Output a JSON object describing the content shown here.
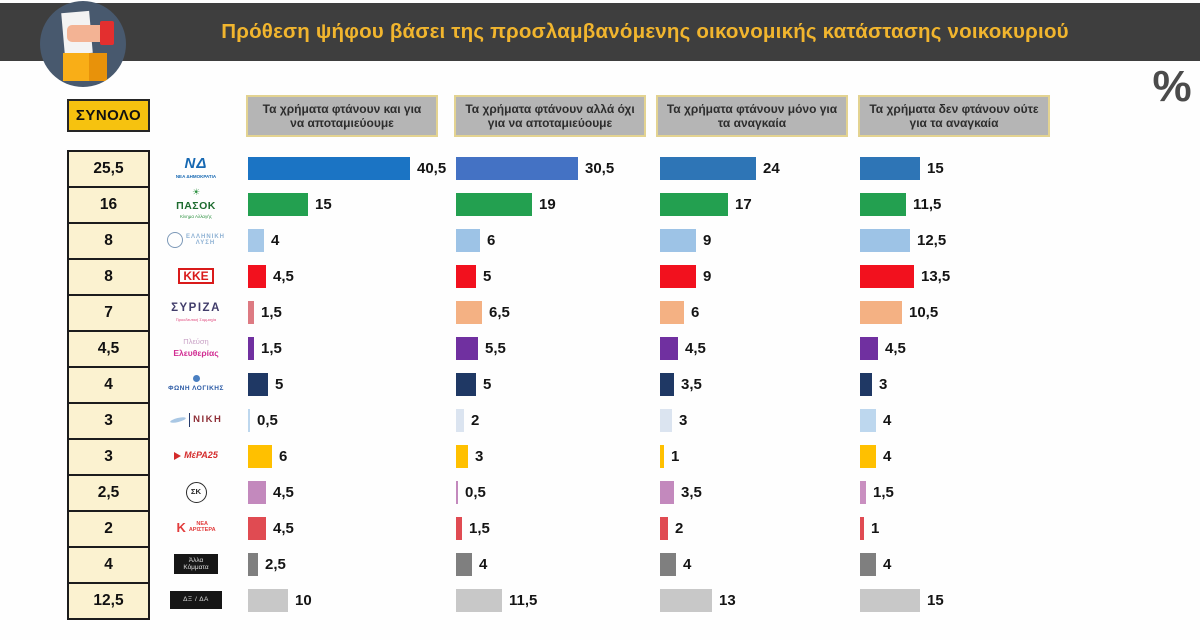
{
  "header": {
    "title": "Πρόθεση ψήφου βάσει της προσλαμβανόμενης οικονομικής κατάστασης νοικοκυριού",
    "title_color": "#f1b52e",
    "bar_color": "#3e3e3e",
    "unit": "%"
  },
  "total_header": "ΣΥΝΟΛΟ",
  "columns": [
    {
      "label": "Τα χρήματα φτάνουν και για να αποταμιεύουμε"
    },
    {
      "label": "Τα χρήματα φτάνουν αλλά όχι για να αποταμιεύουμε"
    },
    {
      "label": "Τα χρήματα φτάνουν μόνο για τα αναγκαία"
    },
    {
      "label": "Τα χρήματα δεν φτάνουν ούτε για τα αναγκαία"
    }
  ],
  "chart_data": {
    "type": "bar",
    "orientation": "horizontal",
    "unit": "%",
    "title": "Πρόθεση ψήφου βάσει της προσλαμβανόμενης οικονομικής κατάστασης νοικοκυριού",
    "categories": [
      "Τα χρήματα φτάνουν και για να αποταμιεύουμε",
      "Τα χρήματα φτάνουν αλλά όχι για να αποταμιεύουμε",
      "Τα χρήματα φτάνουν μόνο για τα αναγκαία",
      "Τα χρήματα δεν φτάνουν ούτε για τα αναγκαία"
    ],
    "series": [
      {
        "id": "nd",
        "name": "ΝΔ - ΝΕΑ ΔΗΜΟΚΡΑΤΙΑ",
        "total": "25,5",
        "values": [
          40.5,
          30.5,
          24,
          15
        ],
        "labels": [
          "40,5",
          "30,5",
          "24",
          "15"
        ],
        "colors": [
          "#1b74c4",
          "#4472c4",
          "#2e75b6",
          "#2e75b6"
        ],
        "logo": {
          "dir": "col",
          "parts": [
            {
              "text": "ΝΔ",
              "size": 15,
              "color": "#1668b2",
              "bold": true,
              "italic": true,
              "ls": 1
            },
            {
              "text": "ΝΕΑ ΔΗΜΟΚΡΑΤΙΑ",
              "size": 4.5,
              "color": "#1668b2",
              "bold": true
            }
          ]
        }
      },
      {
        "id": "pasok",
        "name": "ΠΑΣΟΚ Κίνημα Αλλαγής",
        "total": "16",
        "values": [
          15,
          19,
          17,
          11.5
        ],
        "labels": [
          "15",
          "19",
          "17",
          "11,5"
        ],
        "colors": [
          "#23a050",
          "#23a050",
          "#23a050",
          "#23a050"
        ],
        "logo": {
          "dir": "col",
          "parts": [
            {
              "text": "☀",
              "size": 9,
              "color": "#2f9242"
            },
            {
              "text": "ΠΑΣΟΚ",
              "size": 10.5,
              "color": "#1d6b2f",
              "bold": true,
              "ls": 0.5
            },
            {
              "text": "Κίνημα Αλλαγής",
              "size": 4.5,
              "color": "#2f9242"
            }
          ]
        }
      },
      {
        "id": "elliniki-lysi",
        "name": "ΕΛΛΗΝΙΚΗ ΛΥΣΗ",
        "total": "8",
        "values": [
          4,
          6,
          9,
          12.5
        ],
        "labels": [
          "4",
          "6",
          "9",
          "12,5"
        ],
        "colors": [
          "#a5c8e8",
          "#9dc3e6",
          "#9dc3e6",
          "#9dc3e6"
        ],
        "logo": {
          "dir": "row",
          "parts": [
            {
              "shape": "ring",
              "color": "#7d99b8",
              "w": 16,
              "h": 16,
              "label": ""
            },
            {
              "lines": [
                "ΕΛΛΗΝΙΚΗ",
                "ΛΥΣΗ"
              ],
              "size": 6,
              "color": "#8fb2d4",
              "bold": true,
              "ls": 1
            }
          ]
        }
      },
      {
        "id": "kke",
        "name": "ΚΚΕ",
        "total": "8",
        "values": [
          4.5,
          5,
          9,
          13.5
        ],
        "labels": [
          "4,5",
          "5",
          "9",
          "13,5"
        ],
        "colors": [
          "#f2111e",
          "#f2111e",
          "#f2111e",
          "#f2111e"
        ],
        "logo": {
          "dir": "col",
          "border": "2px solid #d91a1a",
          "pad": "0px 3px",
          "parts": [
            {
              "text": "ΚΚΕ",
              "size": 12,
              "color": "#d91a1a",
              "bold": true
            }
          ]
        }
      },
      {
        "id": "syriza",
        "name": "ΣΥΡΙΖΑ Προοδευτική Συμμαχία",
        "total": "7",
        "values": [
          1.5,
          6.5,
          6,
          10.5
        ],
        "labels": [
          "1,5",
          "6,5",
          "6",
          "10,5"
        ],
        "colors": [
          "#dd7a82",
          "#f4b183",
          "#f4b183",
          "#f4b183"
        ],
        "logo": {
          "dir": "col",
          "parts": [
            {
              "text": "ΣΥΡΙΖΑ",
              "size": 11.5,
              "color": "#413d6b",
              "bold": true,
              "ls": 1.5
            },
            {
              "text": "Προοδευτική Συμμαχία",
              "size": 4,
              "color": "#e0457b"
            }
          ]
        }
      },
      {
        "id": "plefsi-eleftherias",
        "name": "Πλεύση Ελευθερίας",
        "total": "4,5",
        "values": [
          1.5,
          5.5,
          4.5,
          4.5
        ],
        "labels": [
          "1,5",
          "5,5",
          "4,5",
          "4,5"
        ],
        "colors": [
          "#7030a0",
          "#7030a0",
          "#7030a0",
          "#7030a0"
        ],
        "logo": {
          "dir": "col",
          "parts": [
            {
              "text": "Πλεύση",
              "size": 7.5,
              "color": "#c9a2c6"
            },
            {
              "text": "Ελευθερίας",
              "size": 8.5,
              "color": "#d12c92",
              "bold": true
            }
          ]
        }
      },
      {
        "id": "foni-logikis",
        "name": "ΦΩΝΗ ΛΟΓΙΚΗΣ",
        "total": "4",
        "values": [
          5,
          5,
          3.5,
          3
        ],
        "labels": [
          "5",
          "5",
          "3,5",
          "3"
        ],
        "colors": [
          "#1f3864",
          "#1f3864",
          "#1f3864",
          "#1f3864"
        ],
        "logo": {
          "dir": "col",
          "parts": [
            {
              "shape": "circle",
              "color": "#4a7fc1",
              "w": 7,
              "h": 7
            },
            {
              "text": "ΦΩΝΗ ΛΟΓΙΚΗΣ",
              "size": 6.5,
              "color": "#2b5aa5",
              "bold": true,
              "ls": 0.5
            }
          ]
        }
      },
      {
        "id": "niki",
        "name": "ΝΙΚΗ",
        "total": "3",
        "values": [
          0.5,
          2,
          3,
          4
        ],
        "labels": [
          "0,5",
          "2",
          "3",
          "4"
        ],
        "colors": [
          "#bdd7ee",
          "#dbe4f0",
          "#dbe4f0",
          "#bdd7ee"
        ],
        "logo": {
          "dir": "row",
          "parts": [
            {
              "shape": "swoosh",
              "color": "#a9c7e4",
              "w": 16,
              "h": 4
            },
            {
              "shape": "vbar",
              "color": "#24396b",
              "w": 1.5,
              "h": 14
            },
            {
              "text": "ΝΙΚΗ",
              "size": 9.5,
              "color": "#8f3038",
              "bold": true,
              "ls": 1.5
            }
          ]
        }
      },
      {
        "id": "mera25",
        "name": "ΜέΡΑ25",
        "total": "3",
        "values": [
          6,
          3,
          1,
          4
        ],
        "labels": [
          "6",
          "3",
          "1",
          "4"
        ],
        "colors": [
          "#ffc000",
          "#ffc000",
          "#ffc000",
          "#ffc000"
        ],
        "logo": {
          "dir": "row",
          "parts": [
            {
              "shape": "tri",
              "color": "#d42b2b",
              "w": 7,
              "h": 9
            },
            {
              "text": "ΜέΡΑ25",
              "size": 9,
              "color": "#d42b2b",
              "bold": true,
              "italic": true
            }
          ]
        }
      },
      {
        "id": "sk",
        "name": "ΣΚ",
        "total": "2,5",
        "values": [
          4.5,
          0.5,
          3.5,
          1.5
        ],
        "labels": [
          "4,5",
          "0,5",
          "3,5",
          "1,5"
        ],
        "colors": [
          "#c389bd",
          "#c389bd",
          "#c389bd",
          "#c98fc0"
        ],
        "logo": {
          "dir": "row",
          "parts": [
            {
              "shape": "ring",
              "color": "#2a2a2a",
              "w": 21,
              "h": 21,
              "label": "ΣΚ"
            }
          ]
        }
      },
      {
        "id": "nea-aristera",
        "name": "ΝΕΑ ΑΡΙΣΤΕΡΑ",
        "total": "2",
        "values": [
          4.5,
          1.5,
          2,
          1
        ],
        "labels": [
          "4,5",
          "1,5",
          "2",
          "1"
        ],
        "colors": [
          "#e04b52",
          "#e04b52",
          "#e04b52",
          "#e04b52"
        ],
        "logo": {
          "dir": "row",
          "parts": [
            {
              "text": "Κ",
              "size": 13,
              "color": "#e23c3c",
              "bold": true
            },
            {
              "lines": [
                "ΝΕΑ",
                "ΑΡΙΣΤΕΡΑ"
              ],
              "size": 5.5,
              "color": "#e23c3c",
              "bold": true
            }
          ]
        }
      },
      {
        "id": "alla-kommata",
        "name": "Άλλα Κόμματα",
        "total": "4",
        "values": [
          2.5,
          4,
          4,
          4
        ],
        "labels": [
          "2,5",
          "4",
          "4",
          "4"
        ],
        "colors": [
          "#7f7f7f",
          "#7f7f7f",
          "#7f7f7f",
          "#7f7f7f"
        ],
        "logo": {
          "dir": "col",
          "bg": "#161616",
          "pad": "3px 9px",
          "parts": [
            {
              "lines": [
                "Άλλα",
                "Κόμματα"
              ],
              "size": 6.5,
              "color": "#dedede"
            }
          ]
        }
      },
      {
        "id": "dx-da",
        "name": "ΔΞ/ΔΑ",
        "total": "12,5",
        "values": [
          10,
          11.5,
          13,
          15
        ],
        "labels": [
          "10",
          "11,5",
          "13",
          "15"
        ],
        "colors": [
          "#c8c8c8",
          "#c8c8c8",
          "#c8c8c8",
          "#c8c8c8"
        ],
        "logo": {
          "dir": "col",
          "bg": "#161616",
          "pad": "5px 13px",
          "parts": [
            {
              "text": "ΔΞ / ΔΑ",
              "size": 6.5,
              "color": "#dedede",
              "ls": 0.5
            }
          ]
        }
      }
    ]
  }
}
